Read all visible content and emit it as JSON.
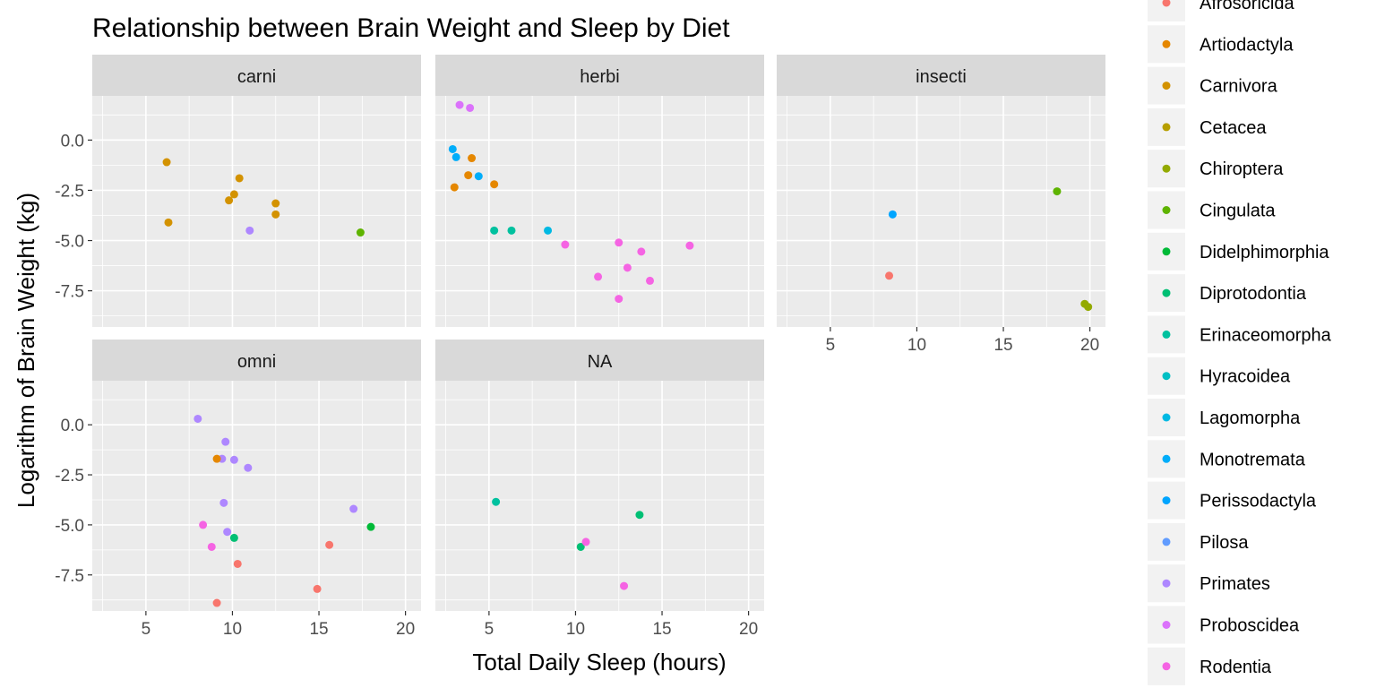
{
  "chart_data": {
    "type": "scatter",
    "title": "Relationship between Brain Weight and Sleep by Diet",
    "xlabel": "Total Daily Sleep (hours)",
    "ylabel": "Logarithm of Brain Weight (kg)",
    "xlim": [
      1.9,
      20.9
    ],
    "ylim": [
      -9.3,
      2.2
    ],
    "x_ticks": [
      5,
      10,
      15,
      20
    ],
    "y_ticks": [
      0,
      -2.5,
      -5,
      -7.5
    ],
    "y_tick_labels": [
      "0.0",
      "-2.5",
      "-5.0",
      "-7.5"
    ],
    "grid": true,
    "legend_position": "right",
    "legend": [
      {
        "name": "Afrosoricida",
        "color": "#F8766D"
      },
      {
        "name": "Artiodactyla",
        "color": "#E58700"
      },
      {
        "name": "Carnivora",
        "color": "#D39200"
      },
      {
        "name": "Cetacea",
        "color": "#B79F00"
      },
      {
        "name": "Chiroptera",
        "color": "#93AA00"
      },
      {
        "name": "Cingulata",
        "color": "#5EB300"
      },
      {
        "name": "Didelphimorphia",
        "color": "#00BA38"
      },
      {
        "name": "Diprotodontia",
        "color": "#00BF74"
      },
      {
        "name": "Erinaceomorpha",
        "color": "#00C19F"
      },
      {
        "name": "Hyracoidea",
        "color": "#00BFC4"
      },
      {
        "name": "Lagomorpha",
        "color": "#00B9E3"
      },
      {
        "name": "Monotremata",
        "color": "#00ADFA"
      },
      {
        "name": "Perissodactyla",
        "color": "#00A5FF"
      },
      {
        "name": "Pilosa",
        "color": "#619CFF"
      },
      {
        "name": "Primates",
        "color": "#AE87FF"
      },
      {
        "name": "Proboscidea",
        "color": "#DB72FB"
      },
      {
        "name": "Rodentia",
        "color": "#F564E3"
      }
    ],
    "panels": [
      {
        "name": "carni",
        "points": [
          {
            "x": 6.2,
            "y": -1.1,
            "color": "#D39200"
          },
          {
            "x": 6.3,
            "y": -4.1,
            "color": "#D39200"
          },
          {
            "x": 9.8,
            "y": -3.0,
            "color": "#D39200"
          },
          {
            "x": 10.1,
            "y": -2.7,
            "color": "#D39200"
          },
          {
            "x": 10.4,
            "y": -1.9,
            "color": "#D39200"
          },
          {
            "x": 12.5,
            "y": -3.15,
            "color": "#D39200"
          },
          {
            "x": 12.5,
            "y": -3.7,
            "color": "#D39200"
          },
          {
            "x": 11.0,
            "y": -4.5,
            "color": "#AE87FF"
          },
          {
            "x": 17.4,
            "y": -4.6,
            "color": "#5EB300"
          }
        ]
      },
      {
        "name": "herbi",
        "points": [
          {
            "x": 3.3,
            "y": 1.75,
            "color": "#DB72FB"
          },
          {
            "x": 3.9,
            "y": 1.6,
            "color": "#DB72FB"
          },
          {
            "x": 2.9,
            "y": -0.45,
            "color": "#00ADFA"
          },
          {
            "x": 3.1,
            "y": -0.85,
            "color": "#00ADFA"
          },
          {
            "x": 4.4,
            "y": -1.8,
            "color": "#00ADFA"
          },
          {
            "x": 4.0,
            "y": -0.9,
            "color": "#E58700"
          },
          {
            "x": 3.8,
            "y": -1.75,
            "color": "#E58700"
          },
          {
            "x": 3.0,
            "y": -2.35,
            "color": "#E58700"
          },
          {
            "x": 5.3,
            "y": -2.2,
            "color": "#E58700"
          },
          {
            "x": 5.3,
            "y": -4.5,
            "color": "#00C19F"
          },
          {
            "x": 6.3,
            "y": -4.5,
            "color": "#00C19F"
          },
          {
            "x": 8.4,
            "y": -4.5,
            "color": "#00B9E3"
          },
          {
            "x": 9.4,
            "y": -5.2,
            "color": "#F564E3"
          },
          {
            "x": 12.5,
            "y": -5.1,
            "color": "#F564E3"
          },
          {
            "x": 13.8,
            "y": -5.55,
            "color": "#F564E3"
          },
          {
            "x": 16.6,
            "y": -5.25,
            "color": "#F564E3"
          },
          {
            "x": 11.3,
            "y": -6.8,
            "color": "#F564E3"
          },
          {
            "x": 13.0,
            "y": -6.35,
            "color": "#F564E3"
          },
          {
            "x": 14.3,
            "y": -7.0,
            "color": "#F564E3"
          },
          {
            "x": 12.5,
            "y": -7.9,
            "color": "#F564E3"
          }
        ]
      },
      {
        "name": "insecti",
        "points": [
          {
            "x": 18.1,
            "y": -2.55,
            "color": "#5EB300"
          },
          {
            "x": 8.6,
            "y": -3.7,
            "color": "#00A5FF"
          },
          {
            "x": 8.4,
            "y": -6.75,
            "color": "#F8766D"
          },
          {
            "x": 19.7,
            "y": -8.15,
            "color": "#93AA00"
          },
          {
            "x": 19.9,
            "y": -8.3,
            "color": "#93AA00"
          }
        ]
      },
      {
        "name": "omni",
        "points": [
          {
            "x": 8.0,
            "y": 0.3,
            "color": "#AE87FF"
          },
          {
            "x": 9.6,
            "y": -0.85,
            "color": "#AE87FF"
          },
          {
            "x": 9.4,
            "y": -1.7,
            "color": "#AE87FF"
          },
          {
            "x": 9.1,
            "y": -1.7,
            "color": "#E58700"
          },
          {
            "x": 10.1,
            "y": -1.75,
            "color": "#AE87FF"
          },
          {
            "x": 10.9,
            "y": -2.15,
            "color": "#AE87FF"
          },
          {
            "x": 9.5,
            "y": -3.9,
            "color": "#AE87FF"
          },
          {
            "x": 8.3,
            "y": -5.0,
            "color": "#F564E3"
          },
          {
            "x": 9.7,
            "y": -5.35,
            "color": "#AE87FF"
          },
          {
            "x": 10.1,
            "y": -5.65,
            "color": "#00BF74"
          },
          {
            "x": 8.8,
            "y": -6.1,
            "color": "#F564E3"
          },
          {
            "x": 10.3,
            "y": -6.95,
            "color": "#F8766D"
          },
          {
            "x": 9.1,
            "y": -8.9,
            "color": "#F8766D"
          },
          {
            "x": 14.9,
            "y": -8.2,
            "color": "#F8766D"
          },
          {
            "x": 15.6,
            "y": -6.0,
            "color": "#F8766D"
          },
          {
            "x": 17.0,
            "y": -4.2,
            "color": "#AE87FF"
          },
          {
            "x": 18.0,
            "y": -5.1,
            "color": "#00BA38"
          }
        ]
      },
      {
        "name": "NA",
        "points": [
          {
            "x": 5.4,
            "y": -3.85,
            "color": "#00C19F"
          },
          {
            "x": 13.7,
            "y": -4.5,
            "color": "#00BF74"
          },
          {
            "x": 10.3,
            "y": -6.1,
            "color": "#00BF74"
          },
          {
            "x": 10.6,
            "y": -5.85,
            "color": "#F564E3"
          },
          {
            "x": 12.8,
            "y": -8.05,
            "color": "#F564E3"
          }
        ]
      }
    ]
  }
}
